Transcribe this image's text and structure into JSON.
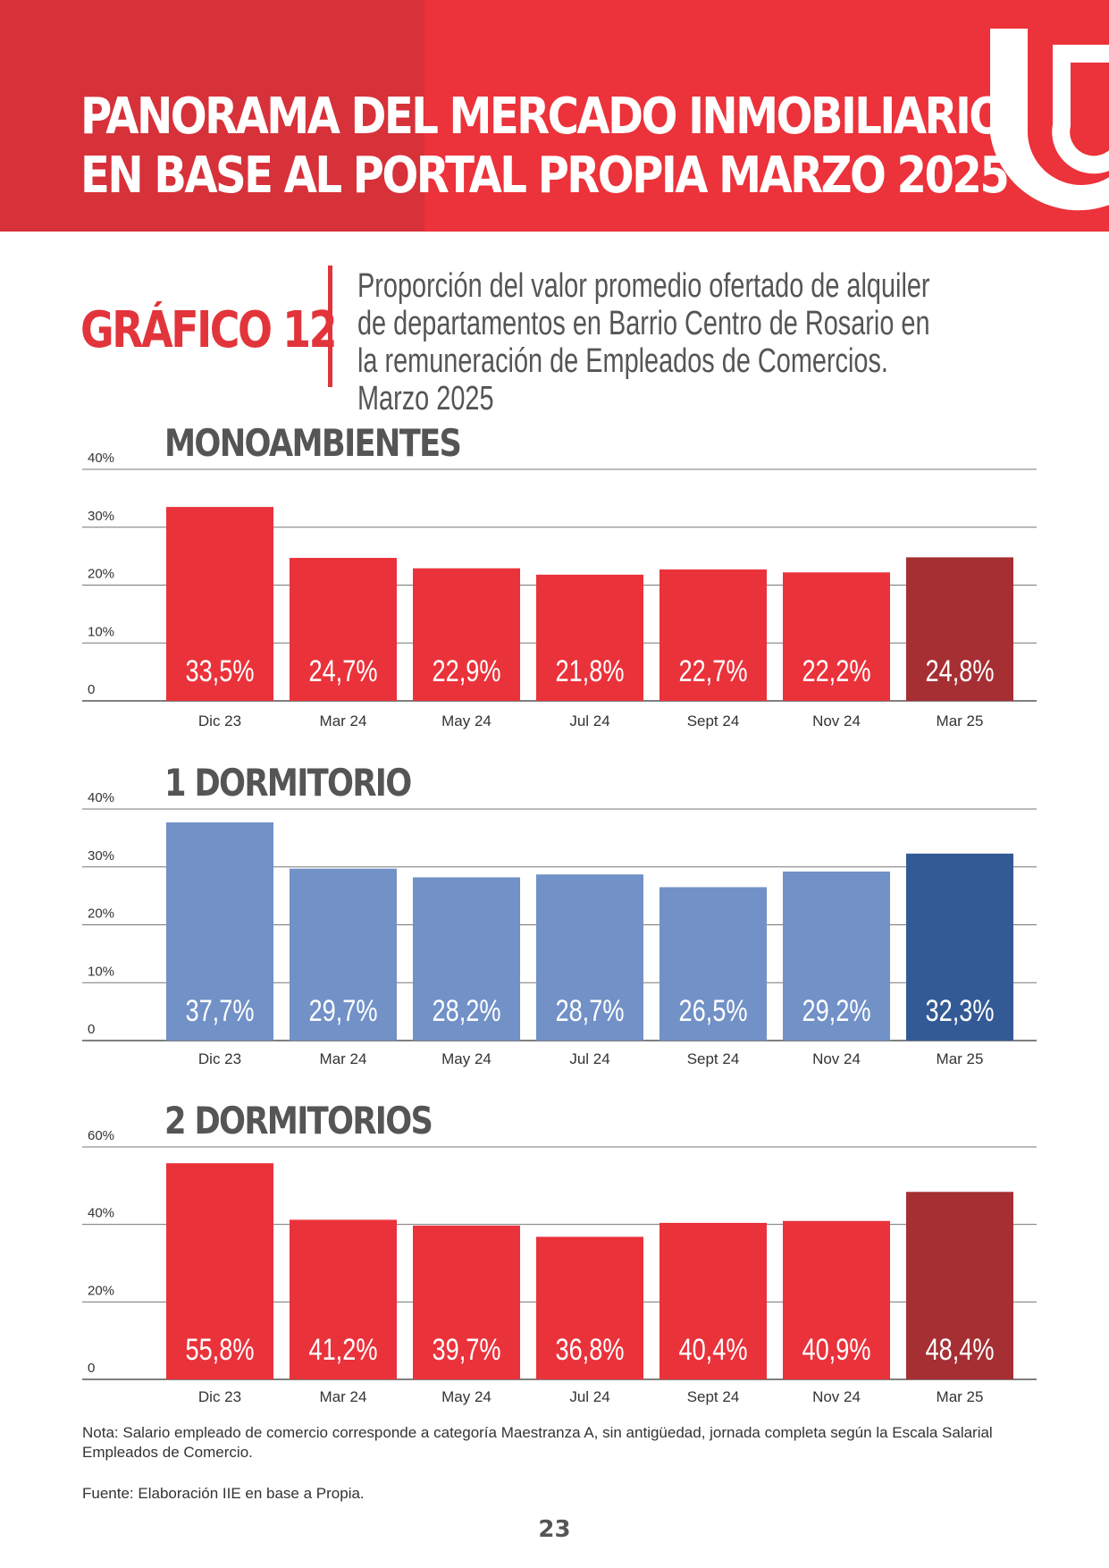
{
  "header": {
    "title_line1": "PANORAMA DEL MERCADO INMOBILIARIO",
    "title_line2": "EN BASE AL PORTAL PROPIA  MARZO 2025"
  },
  "figure": {
    "number": "GRÁFICO 12",
    "subtitle": "Proporción del valor promedio ofertado de alquiler de departamentos en Barrio Centro de Rosario en la remuneración de Empleados de Comercios. Marzo 2025"
  },
  "colors": {
    "header_red": "#ec323a",
    "bar_red": "#ea323b",
    "bar_red_highlight": "#a52f33",
    "bar_blue": "#7191c7",
    "bar_blue_highlight": "#335a94"
  },
  "chart_data": [
    {
      "type": "bar",
      "title": "MONOAMBIENTES",
      "categories": [
        "Dic 23",
        "Mar 24",
        "May 24",
        "Jul 24",
        "Sept 24",
        "Nov 24",
        "Mar 25"
      ],
      "values": [
        33.5,
        24.7,
        22.9,
        21.8,
        22.7,
        22.2,
        24.8
      ],
      "data_labels": [
        "33,5%",
        "24,7%",
        "22,9%",
        "21,8%",
        "22,7%",
        "22,2%",
        "24,8%"
      ],
      "ylim": [
        0,
        40
      ],
      "yticks": [
        0,
        10,
        20,
        30,
        40
      ],
      "ytick_labels": [
        "0",
        "10%",
        "20%",
        "30%",
        "40%"
      ],
      "grid": true,
      "bar_color": "#ea323b",
      "highlight_color": "#a52f33",
      "highlight_index": 6
    },
    {
      "type": "bar",
      "title": "1 DORMITORIO",
      "categories": [
        "Dic 23",
        "Mar 24",
        "May 24",
        "Jul 24",
        "Sept 24",
        "Nov 24",
        "Mar 25"
      ],
      "values": [
        37.7,
        29.7,
        28.2,
        28.7,
        26.5,
        29.2,
        32.3
      ],
      "data_labels": [
        "37,7%",
        "29,7%",
        "28,2%",
        "28,7%",
        "26,5%",
        "29,2%",
        "32,3%"
      ],
      "ylim": [
        0,
        40
      ],
      "yticks": [
        0,
        10,
        20,
        30,
        40
      ],
      "ytick_labels": [
        "0",
        "10%",
        "20%",
        "30%",
        "40%"
      ],
      "grid": true,
      "bar_color": "#7191c7",
      "highlight_color": "#335a94",
      "highlight_index": 6
    },
    {
      "type": "bar",
      "title": "2 DORMITORIOS",
      "categories": [
        "Dic 23",
        "Mar 24",
        "May 24",
        "Jul 24",
        "Sept 24",
        "Nov 24",
        "Mar 25"
      ],
      "values": [
        55.8,
        41.2,
        39.7,
        36.8,
        40.4,
        40.9,
        48.4
      ],
      "data_labels": [
        "55,8%",
        "41,2%",
        "39,7%",
        "36,8%",
        "40,4%",
        "40,9%",
        "48,4%"
      ],
      "ylim": [
        0,
        60
      ],
      "yticks": [
        0,
        20,
        40,
        60
      ],
      "ytick_labels": [
        "0",
        "20%",
        "40%",
        "60%"
      ],
      "grid": true,
      "bar_color": "#ea323b",
      "highlight_color": "#a52f33",
      "highlight_index": 6
    }
  ],
  "notes": {
    "footnote": "Nota: Salario empleado de comercio corresponde a categoría Maestranza A, sin antigüedad, jornada completa según la Escala Salarial Empleados de Comercio.",
    "source": "Fuente: Elaboración IIE en base a Propia.",
    "page_number": "23"
  }
}
